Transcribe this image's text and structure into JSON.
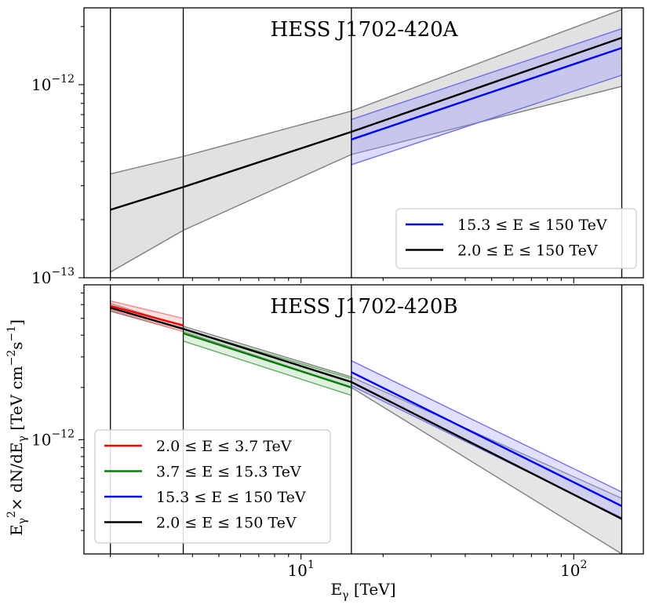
{
  "chart_data": [
    {
      "type": "line",
      "panel": "top",
      "title": "HESS J1702-420A",
      "xscale": "log",
      "yscale": "log",
      "xlim": [
        1.6,
        180
      ],
      "ylim": [
        1e-13,
        2.5e-12
      ],
      "ytick_labels": [
        {
          "value": 1e-13,
          "base": "10",
          "exp": "−13"
        },
        {
          "value": 1e-12,
          "base": "10",
          "exp": "−12"
        }
      ],
      "vlines": [
        2.0,
        3.7,
        15.3,
        150
      ],
      "legend_position": "lower right",
      "series": [
        {
          "name": "2.0 ≤ E ≤ 150 TeV",
          "color": "#000000",
          "band_color": "#c8c8c8",
          "band_edge_color": "#7f7f7f",
          "x": [
            2.0,
            3.7,
            15.3,
            150
          ],
          "y": [
            2.25e-13,
            2.95e-13,
            5.7e-13,
            1.75e-12
          ],
          "band_low": [
            1.07e-13,
            1.76e-13,
            4.35e-13,
            9.8e-13
          ],
          "band_high": [
            3.45e-13,
            4.25e-13,
            7.3e-13,
            2.45e-12
          ]
        },
        {
          "name": "15.3 ≤ E ≤ 150 TeV",
          "color": "#0000ff",
          "band_color": "#9999ff",
          "band_edge_color": "#7070ee",
          "x": [
            15.3,
            150
          ],
          "y": [
            5.2e-13,
            1.55e-12
          ],
          "band_low": [
            3.85e-13,
            1.12e-12
          ],
          "band_high": [
            6.6e-13,
            1.95e-12
          ]
        }
      ]
    },
    {
      "type": "line",
      "panel": "bottom",
      "title": "HESS J1702-420B",
      "xscale": "log",
      "yscale": "log",
      "xlim": [
        1.6,
        180
      ],
      "ylim": [
        2.2e-13,
        7.8e-12
      ],
      "ytick_labels": [
        {
          "value": 1e-12,
          "base": "10",
          "exp": "−12"
        }
      ],
      "xtick_labels": [
        {
          "value": 10,
          "base": "10",
          "exp": "1"
        },
        {
          "value": 100,
          "base": "10",
          "exp": "2"
        }
      ],
      "xlabel": "E",
      "xlabel_sub": "γ",
      "xlabel_unit": " [TeV]",
      "ylabel": "E",
      "ylabel_sub": "γ",
      "ylabel_sup": "2",
      "ylabel_mid": "× dN/dE",
      "ylabel_sub2": "γ",
      "ylabel_unit": " [TeV cm",
      "ylabel_unit_exp1": "−2",
      "ylabel_unit_s": "s",
      "ylabel_unit_exp2": "−1",
      "ylabel_close": "]",
      "vlines": [
        2.0,
        3.7,
        15.3,
        150
      ],
      "legend_position": "lower left",
      "series": [
        {
          "name": "2.0 ≤ E ≤ 3.7 TeV",
          "color": "#ff0000",
          "band_color": "#ffaaaa",
          "band_edge_color": "#ff8080",
          "x": [
            2.0,
            3.7
          ],
          "y": [
            5.9e-12,
            4.55e-12
          ],
          "band_low": [
            5.6e-12,
            4.2e-12
          ],
          "band_high": [
            6.3e-12,
            5e-12
          ]
        },
        {
          "name": "3.7 ≤ E ≤ 15.3 TeV",
          "color": "#008000",
          "band_color": "#a8d8a8",
          "band_edge_color": "#60b060",
          "x": [
            3.7,
            15.3
          ],
          "y": [
            4.1e-12,
            2e-12
          ],
          "band_low": [
            3.7e-12,
            1.8e-12
          ],
          "band_high": [
            4.35e-12,
            2.25e-12
          ]
        },
        {
          "name": "15.3 ≤ E ≤ 150 TeV",
          "color": "#0000ff",
          "band_color": "#aaaaff",
          "band_edge_color": "#7070ee",
          "x": [
            15.3,
            150
          ],
          "y": [
            2.45e-12,
            4.15e-13
          ],
          "band_low": [
            2.05e-12,
            3.55e-13
          ],
          "band_high": [
            2.85e-12,
            5e-13
          ]
        },
        {
          "name": "2.0 ≤ E ≤ 150 TeV",
          "color": "#000000",
          "band_color": "#cfcfcf",
          "band_edge_color": "#7f7f7f",
          "x": [
            2.0,
            3.7,
            15.3,
            150
          ],
          "y": [
            5.75e-12,
            4.35e-12,
            2.15e-12,
            3.5e-13
          ],
          "band_low": [
            5.5e-12,
            4.2e-12,
            2e-12,
            2.2e-13
          ],
          "band_high": [
            6.1e-12,
            4.5e-12,
            2.3e-12,
            4.6e-13
          ]
        }
      ]
    }
  ]
}
